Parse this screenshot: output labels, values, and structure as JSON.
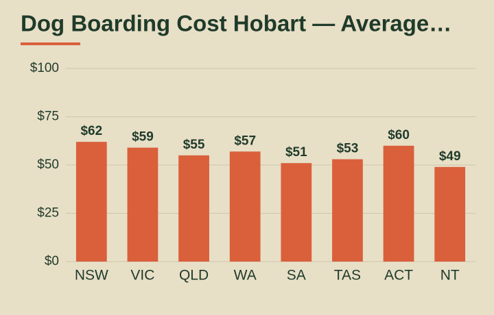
{
  "chart_data": {
    "type": "bar",
    "title": "Dog Boarding Cost Hobart — Average…",
    "categories": [
      "NSW",
      "VIC",
      "QLD",
      "WA",
      "SA",
      "TAS",
      "ACT",
      "NT"
    ],
    "values": [
      62,
      59,
      55,
      57,
      51,
      53,
      60,
      49
    ],
    "value_labels": [
      "$62",
      "$59",
      "$55",
      "$57",
      "$51",
      "$53",
      "$60",
      "$49"
    ],
    "color": "#d9603b",
    "ylim": [
      0,
      100
    ],
    "yticks": [
      {
        "value": 0,
        "label": "$0"
      },
      {
        "value": 25,
        "label": "$25"
      },
      {
        "value": 50,
        "label": "$50"
      },
      {
        "value": 75,
        "label": "$75"
      },
      {
        "value": 100,
        "label": "$100"
      }
    ],
    "grid": true
  }
}
